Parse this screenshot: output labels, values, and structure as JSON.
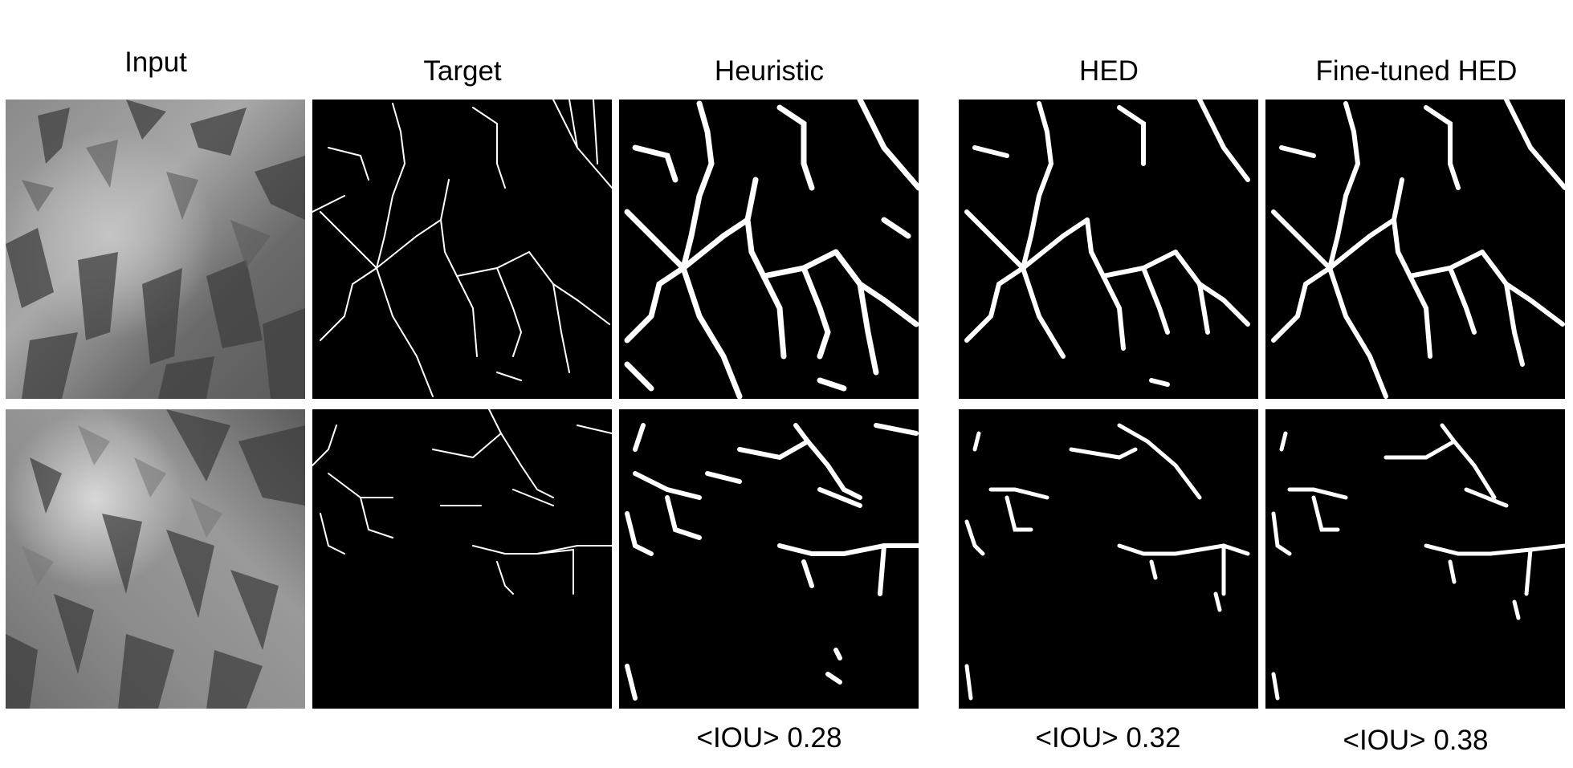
{
  "columns": [
    {
      "key": "input",
      "title": "Input"
    },
    {
      "key": "target",
      "title": "Target"
    },
    {
      "key": "heuristic",
      "title": "Heuristic"
    },
    {
      "key": "hed",
      "title": "HED"
    },
    {
      "key": "finetuned",
      "title": "Fine-tuned HED"
    }
  ],
  "metrics": {
    "heuristic": "<IOU> 0.28",
    "hed": "<IOU> 0.32",
    "finetuned": "<IOU> 0.38"
  },
  "colors": {
    "background": "#ffffff",
    "mask_background": "#000000",
    "channel": "#ffffff"
  }
}
